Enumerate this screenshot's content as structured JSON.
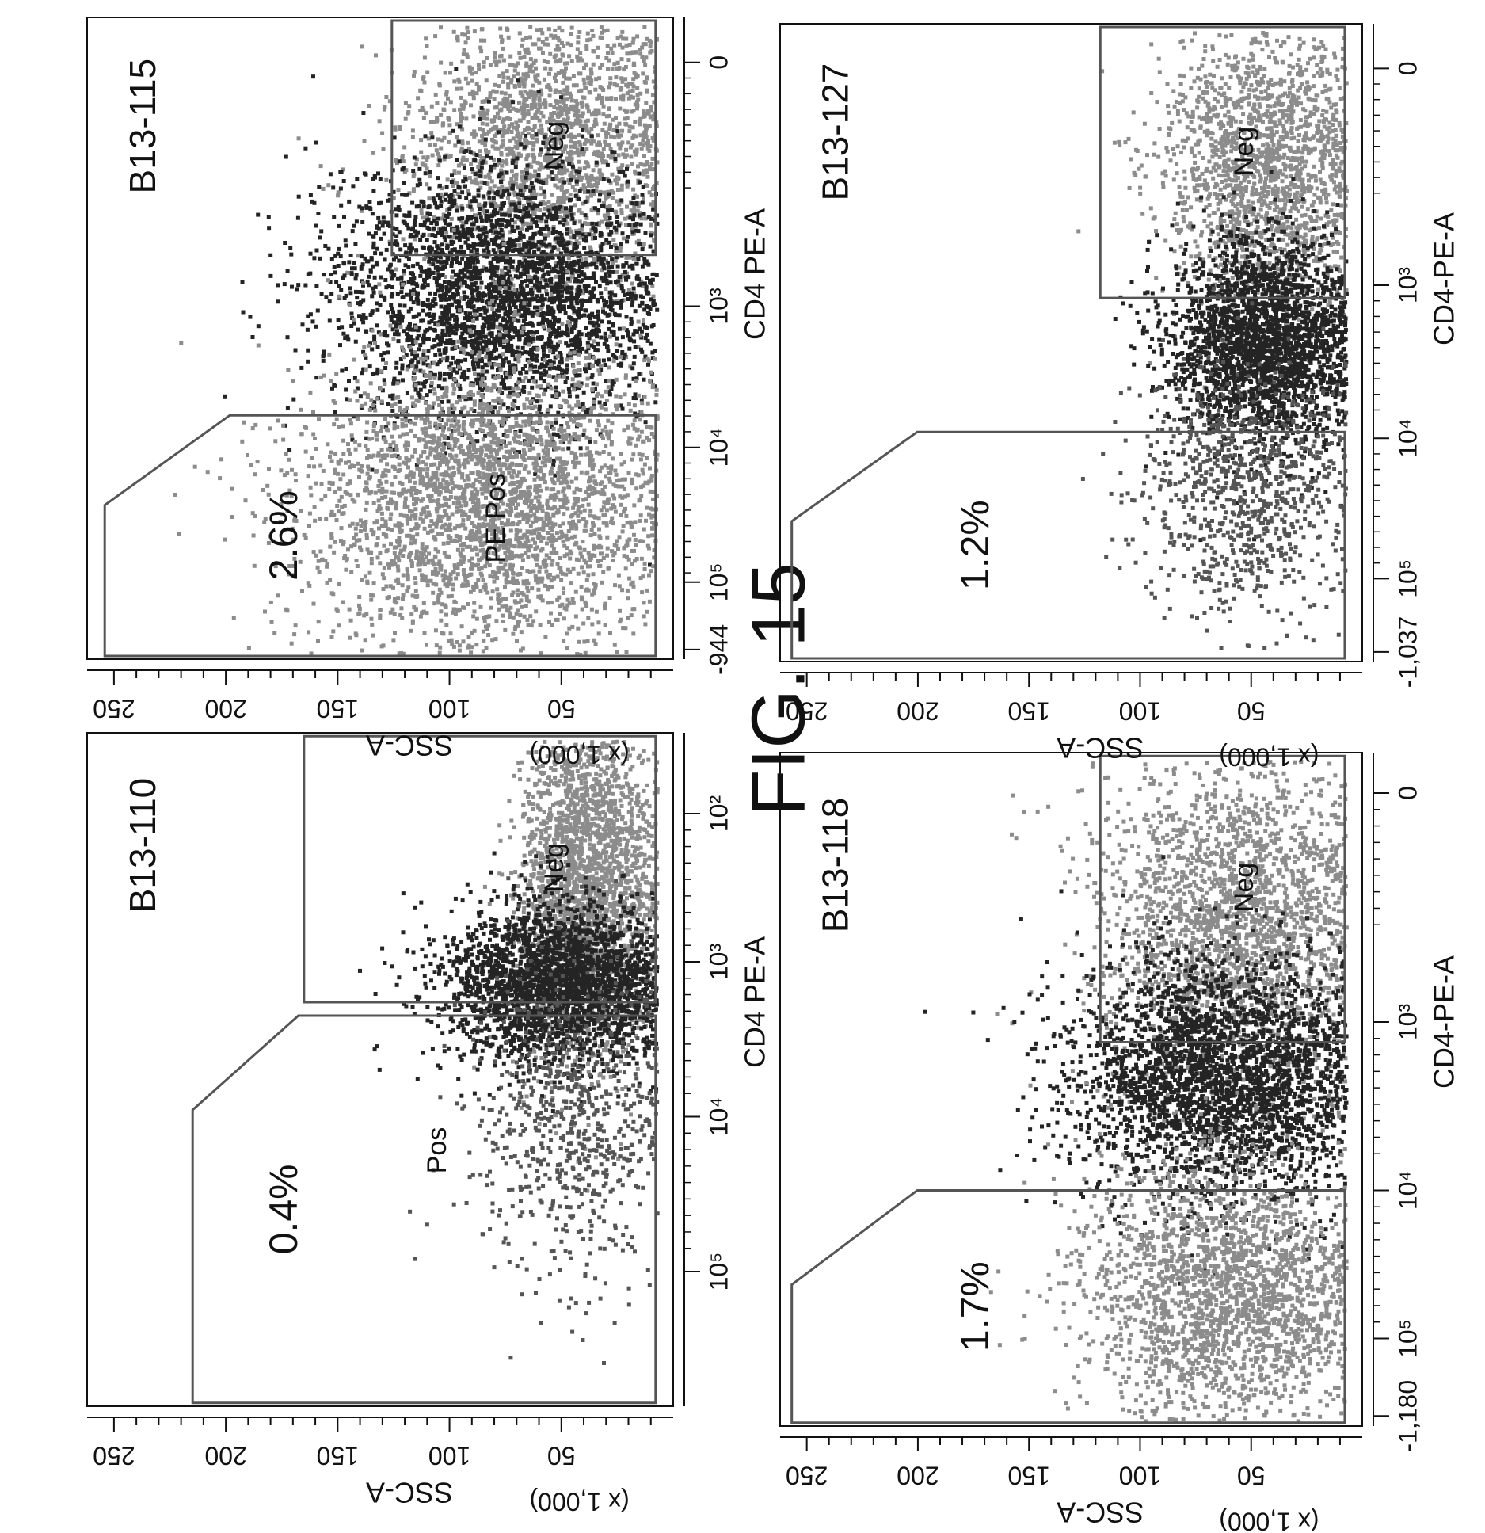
{
  "figure": {
    "title": "FIG. 15"
  },
  "chart_data": [
    {
      "type": "scatter",
      "sample": "B13-110",
      "xlabel": "CD4 PE-A",
      "ylabel": "SSC-A",
      "y_unit": "(x 1,000)",
      "x_ticks": [
        "10²",
        "10³",
        "10⁴",
        "10⁵"
      ],
      "y_ticks": [
        "50",
        "100",
        "150",
        "200",
        "250"
      ],
      "ylim": [
        0,
        262
      ],
      "x_scale": "log",
      "gates": [
        {
          "label": "Neg",
          "percent": ""
        },
        {
          "label": "Pos",
          "percent": "0.4%"
        }
      ]
    },
    {
      "type": "scatter",
      "sample": "B13-115",
      "xlabel": "CD4 PE-A",
      "ylabel": "SSC-A",
      "y_unit": "(x 1,000)",
      "x_ticks": [
        "-944",
        "0",
        "10³",
        "10⁴",
        "10⁵"
      ],
      "y_ticks": [
        "50",
        "100",
        "150",
        "200",
        "250"
      ],
      "ylim": [
        0,
        262
      ],
      "x_scale": "biexponential",
      "gates": [
        {
          "label": "Neg",
          "percent": ""
        },
        {
          "label": "PE Pos",
          "percent": "2.6%"
        }
      ]
    },
    {
      "type": "scatter",
      "sample": "B13-118",
      "xlabel": "CD4-PE-A",
      "ylabel": "SSC-A",
      "y_unit": "(x 1,000)",
      "x_ticks": [
        "-1,180",
        "0",
        "10³",
        "10⁴",
        "10⁵"
      ],
      "y_ticks": [
        "50",
        "100",
        "150",
        "200",
        "250"
      ],
      "ylim": [
        0,
        262
      ],
      "x_scale": "biexponential",
      "gates": [
        {
          "label": "Neg",
          "percent": ""
        },
        {
          "label": "",
          "percent": "1.7%"
        }
      ]
    },
    {
      "type": "scatter",
      "sample": "B13-127",
      "xlabel": "CD4-PE-A",
      "ylabel": "SSC-A",
      "y_unit": "(x 1,000)",
      "x_ticks": [
        "-1,037",
        "0",
        "10³",
        "10⁴",
        "10⁵"
      ],
      "y_ticks": [
        "50",
        "100",
        "150",
        "200",
        "250"
      ],
      "ylim": [
        0,
        262
      ],
      "x_scale": "biexponential",
      "gates": [
        {
          "label": "Neg",
          "percent": ""
        },
        {
          "label": "",
          "percent": "1.2%"
        }
      ]
    }
  ],
  "colors": {
    "dense": "#222222",
    "light": "#8a8a8a",
    "gate": "#555555",
    "frame": "#111111"
  }
}
